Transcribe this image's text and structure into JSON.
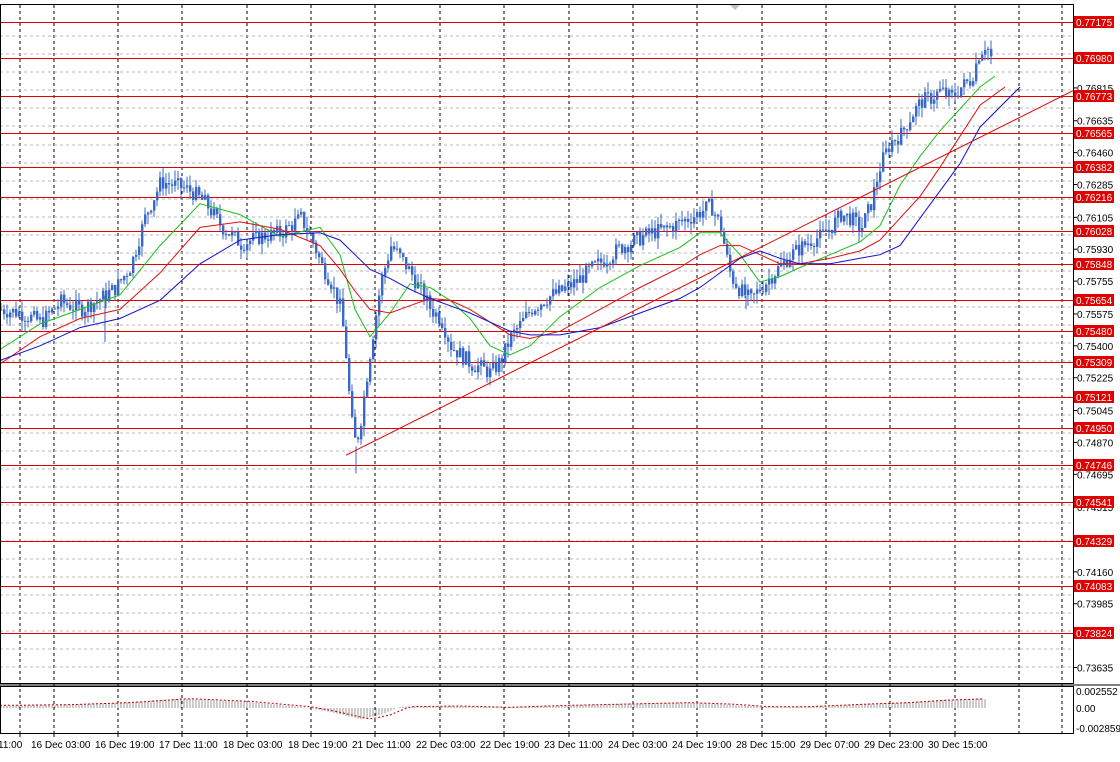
{
  "colors": {
    "background": "#ffffff",
    "candles": "#3a68c8",
    "ma_fast": "#18c018",
    "ma_mid": "#e01010",
    "ma_slow": "#1010d0",
    "levels": "#e00000",
    "grid": "#000000",
    "osc": "#c00000"
  },
  "chart_data": [
    {
      "type": "line",
      "title": "",
      "xlabel": "",
      "ylabel": "",
      "grid": true,
      "y_scale": "linear",
      "ylim": [
        0.7355,
        0.7727
      ],
      "x_range": [
        0,
        1073
      ],
      "x_unit": "bar index",
      "price_ticks": [
        "0.76815",
        "0.76635",
        "0.76460",
        "0.76285",
        "0.76105",
        "0.75930",
        "0.75755",
        "0.75575",
        "0.75400",
        "0.75225",
        "0.75045",
        "0.74870",
        "0.74695",
        "0.74515",
        "0.74160",
        "0.73985",
        "0.73635"
      ],
      "levels": [
        "0.77175",
        "0.76980",
        "0.76773",
        "0.76565",
        "0.76382",
        "0.76216",
        "0.76028",
        "0.75848",
        "0.75654",
        "0.75480",
        "0.75309",
        "0.75121",
        "0.74950",
        "0.74746",
        "0.74541",
        "0.74329",
        "0.74083",
        "0.73824"
      ],
      "time_labels": [
        "11:00",
        "16 Dec 03:00",
        "16 Dec 19:00",
        "17 Dec 11:00",
        "18 Dec 03:00",
        "18 Dec 19:00",
        "21 Dec 11:00",
        "22 Dec 03:00",
        "22 Dec 19:00",
        "23 Dec 11:00",
        "24 Dec 03:00",
        "24 Dec 19:00",
        "28 Dec 15:00",
        "29 Dec 07:00",
        "29 Dec 23:00",
        "30 Dec 15:00"
      ],
      "series": [
        {
          "key": "price",
          "x": [
            0,
            20,
            40,
            60,
            80,
            100,
            115,
            130,
            145,
            160,
            175,
            190,
            205,
            220,
            240,
            260,
            280,
            300,
            310,
            320,
            330,
            340,
            345,
            350,
            355,
            360,
            370,
            380,
            390,
            400,
            410,
            420,
            430,
            440,
            450,
            460,
            470,
            480,
            490,
            500,
            510,
            520,
            530,
            545,
            560,
            575,
            590,
            605,
            620,
            635,
            650,
            665,
            680,
            695,
            710,
            720,
            725,
            730,
            740,
            750,
            760,
            770,
            780,
            790,
            800,
            810,
            820,
            830,
            840,
            850,
            860,
            870,
            880,
            890,
            900,
            910,
            920,
            930,
            940,
            950,
            960,
            970,
            978,
            985,
            990
          ],
          "values": [
            0.756,
            0.7558,
            0.7553,
            0.7564,
            0.756,
            0.7566,
            0.7572,
            0.7584,
            0.7612,
            0.763,
            0.7628,
            0.7625,
            0.7618,
            0.7606,
            0.7596,
            0.76,
            0.7602,
            0.761,
            0.76,
            0.7585,
            0.7575,
            0.756,
            0.7535,
            0.75,
            0.7485,
            0.75,
            0.754,
            0.7575,
            0.7595,
            0.7588,
            0.758,
            0.757,
            0.756,
            0.7555,
            0.754,
            0.7535,
            0.753,
            0.7528,
            0.7525,
            0.7532,
            0.7545,
            0.7552,
            0.756,
            0.7566,
            0.757,
            0.7575,
            0.7582,
            0.7588,
            0.7594,
            0.7598,
            0.7602,
            0.7604,
            0.7608,
            0.7612,
            0.7617,
            0.7605,
            0.759,
            0.7578,
            0.757,
            0.7565,
            0.7572,
            0.7578,
            0.7584,
            0.759,
            0.7594,
            0.7598,
            0.76,
            0.7605,
            0.7612,
            0.761,
            0.7604,
            0.7618,
            0.764,
            0.7652,
            0.7656,
            0.7666,
            0.7674,
            0.7676,
            0.768,
            0.7676,
            0.7682,
            0.7686,
            0.77,
            0.7706,
            0.7698
          ]
        },
        {
          "key": "ma_fast",
          "x": [
            0,
            40,
            80,
            120,
            160,
            200,
            240,
            280,
            320,
            340,
            355,
            370,
            390,
            410,
            430,
            450,
            470,
            490,
            510,
            530,
            560,
            600,
            640,
            680,
            700,
            720,
            740,
            760,
            780,
            800,
            830,
            860,
            880,
            900,
            920,
            940,
            960,
            980,
            995
          ],
          "values": [
            0.7538,
            0.7552,
            0.756,
            0.7568,
            0.7595,
            0.7618,
            0.7612,
            0.76,
            0.7605,
            0.759,
            0.756,
            0.7545,
            0.7558,
            0.7574,
            0.7572,
            0.7565,
            0.7555,
            0.754,
            0.7535,
            0.754,
            0.7556,
            0.7572,
            0.7584,
            0.7594,
            0.7602,
            0.7602,
            0.759,
            0.7575,
            0.7578,
            0.7583,
            0.759,
            0.7597,
            0.7606,
            0.7628,
            0.7644,
            0.7658,
            0.767,
            0.7682,
            0.7688
          ]
        },
        {
          "key": "ma_mid",
          "x": [
            0,
            40,
            80,
            120,
            160,
            200,
            240,
            280,
            320,
            340,
            355,
            370,
            390,
            410,
            430,
            450,
            470,
            490,
            510,
            530,
            560,
            600,
            640,
            680,
            700,
            720,
            740,
            760,
            780,
            800,
            830,
            860,
            880,
            900,
            920,
            940,
            960,
            980,
            1005
          ],
          "values": [
            0.753,
            0.7545,
            0.7555,
            0.756,
            0.758,
            0.7605,
            0.7608,
            0.7604,
            0.7595,
            0.7582,
            0.757,
            0.756,
            0.7558,
            0.7562,
            0.7566,
            0.7565,
            0.756,
            0.7553,
            0.7546,
            0.7544,
            0.7548,
            0.756,
            0.7572,
            0.7583,
            0.759,
            0.7595,
            0.7595,
            0.759,
            0.7585,
            0.7585,
            0.7588,
            0.7592,
            0.7598,
            0.761,
            0.7622,
            0.7638,
            0.7655,
            0.7672,
            0.7682
          ]
        },
        {
          "key": "ma_slow",
          "x": [
            0,
            40,
            80,
            120,
            160,
            200,
            240,
            280,
            320,
            340,
            355,
            370,
            390,
            410,
            430,
            450,
            470,
            490,
            510,
            530,
            560,
            600,
            640,
            680,
            700,
            720,
            740,
            760,
            780,
            800,
            830,
            860,
            880,
            900,
            920,
            940,
            960,
            980,
            1020
          ],
          "values": [
            0.7532,
            0.754,
            0.755,
            0.7555,
            0.7565,
            0.7585,
            0.7598,
            0.7601,
            0.7602,
            0.7598,
            0.759,
            0.7582,
            0.7577,
            0.7571,
            0.7566,
            0.7562,
            0.7558,
            0.7553,
            0.7548,
            0.7546,
            0.7546,
            0.755,
            0.7558,
            0.7566,
            0.7572,
            0.758,
            0.7588,
            0.7592,
            0.7588,
            0.7585,
            0.7585,
            0.7588,
            0.759,
            0.7595,
            0.761,
            0.7625,
            0.764,
            0.766,
            0.7682
          ]
        },
        {
          "key": "trendline",
          "x": [
            346,
            1073
          ],
          "values": [
            0.748,
            0.768
          ]
        }
      ]
    },
    {
      "type": "bar",
      "title": "",
      "grid": true,
      "ylim": [
        -0.002859,
        0.002552
      ],
      "y_ticks": [
        "0.002552",
        "0.00",
        "-0.002859"
      ],
      "x": [
        0,
        60,
        120,
        180,
        240,
        300,
        330,
        360,
        380,
        400,
        450,
        500,
        560,
        620,
        680,
        720,
        760,
        800,
        860,
        900,
        940,
        980,
        985
      ],
      "values": [
        0.0004,
        0.0005,
        0.0008,
        0.0014,
        0.001,
        0.0002,
        -0.0006,
        -0.0016,
        -0.001,
        0.0002,
        0.0003,
        0.0001,
        0.0004,
        0.0006,
        0.0008,
        0.0006,
        0.0002,
        0.0002,
        0.0006,
        0.0008,
        0.0012,
        0.0014,
        0.0013
      ]
    }
  ]
}
